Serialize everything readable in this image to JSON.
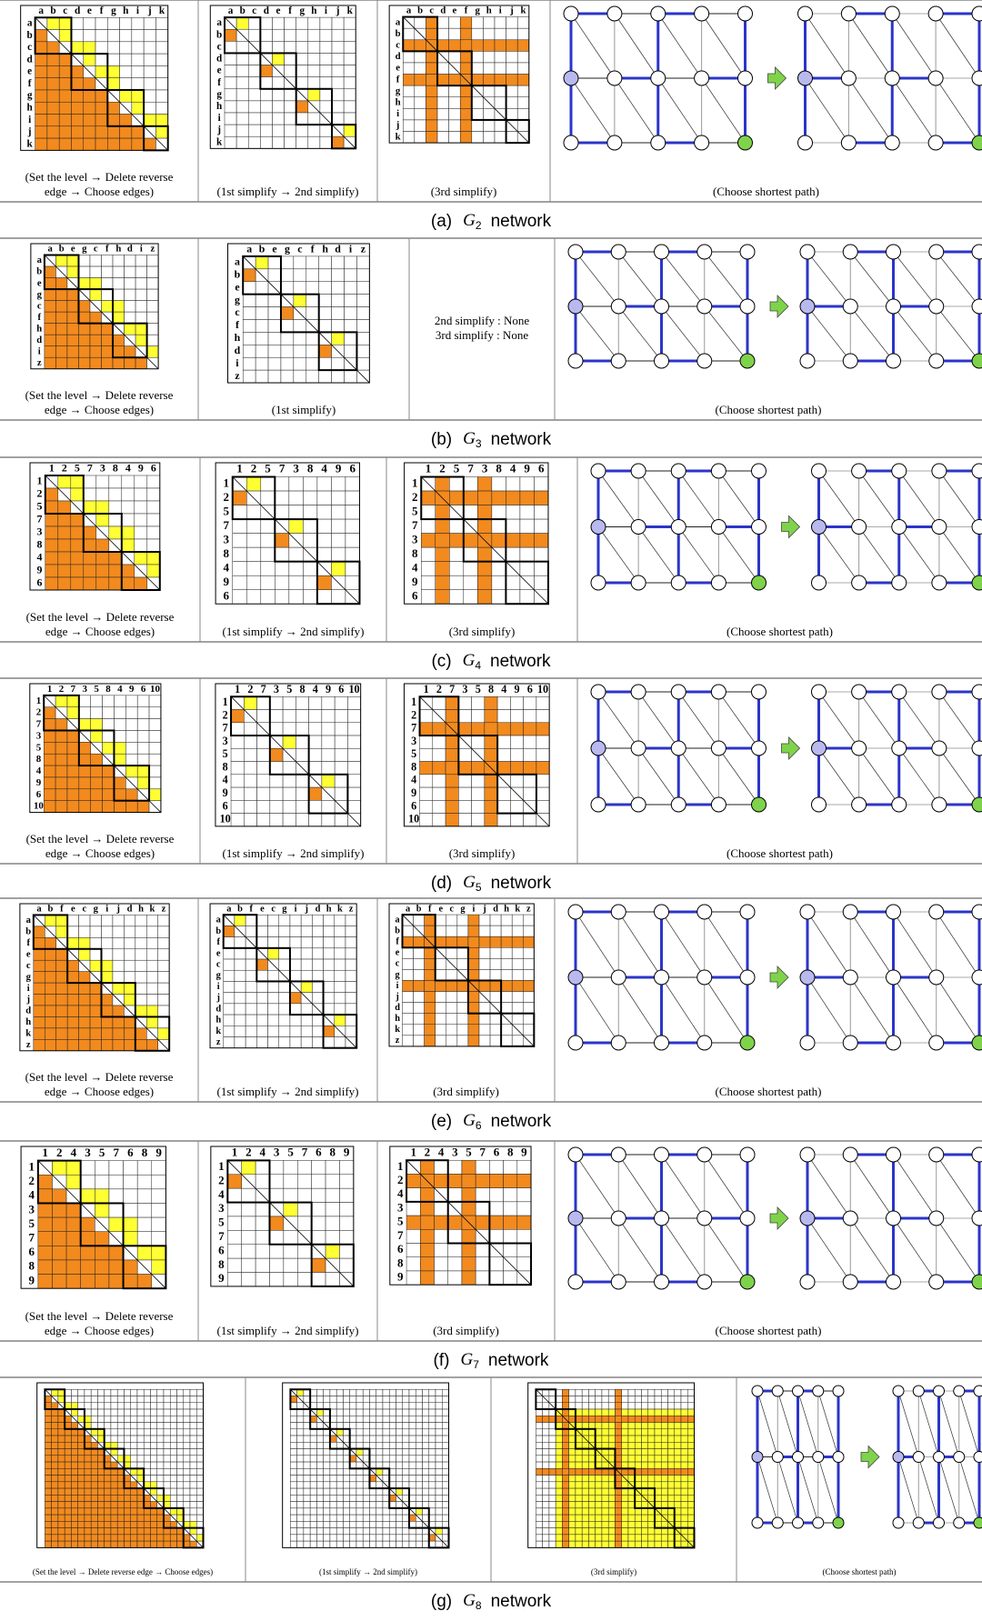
{
  "rows": [
    {
      "label": "(a)",
      "graph": "G",
      "sub": "2",
      "word": "network",
      "nodes": [
        "a",
        "b",
        "c",
        "d",
        "e",
        "f",
        "g",
        "h",
        "i",
        "j",
        "k"
      ],
      "panels": [
        {
          "caption": [
            "(Set the level → Delete reverse",
            "edge → Choose edges)"
          ]
        },
        {
          "caption": [
            "(1st simplify → 2nd simplify)"
          ]
        },
        {
          "caption": [
            "(3rd simplify)"
          ]
        },
        {
          "caption": [
            "(Choose shortest path)"
          ]
        }
      ]
    },
    {
      "label": "(b)",
      "graph": "G",
      "sub": "3",
      "word": "network",
      "nodes": [
        "a",
        "b",
        "e",
        "g",
        "c",
        "f",
        "h",
        "d",
        "i",
        "z"
      ],
      "panels": [
        {
          "caption": [
            "(Set the level → Delete reverse",
            "edge → Choose edges)"
          ]
        },
        {
          "caption": [
            "(1st simplify)"
          ]
        },
        {
          "note": [
            "2nd simplify : None",
            "3rd simplify : None"
          ]
        },
        {
          "caption": [
            "(Choose shortest path)"
          ]
        }
      ]
    },
    {
      "label": "(c)",
      "graph": "G",
      "sub": "4",
      "word": "network",
      "nodes": [
        "1",
        "2",
        "5",
        "7",
        "3",
        "8",
        "4",
        "9",
        "6"
      ],
      "panels": [
        {
          "caption": [
            "(Set the level → Delete reverse",
            "edge → Choose edges)"
          ]
        },
        {
          "caption": [
            "(1st simplify → 2nd simplify)"
          ]
        },
        {
          "caption": [
            "(3rd simplify)"
          ]
        },
        {
          "caption": [
            "(Choose shortest path)"
          ]
        }
      ]
    },
    {
      "label": "(d)",
      "graph": "G",
      "sub": "5",
      "word": "network",
      "nodes": [
        "1",
        "2",
        "7",
        "3",
        "5",
        "8",
        "4",
        "9",
        "6",
        "10"
      ],
      "panels": [
        {
          "caption": [
            "(Set the level → Delete reverse",
            "edge → Choose edges)"
          ]
        },
        {
          "caption": [
            "(1st simplify → 2nd simplify)"
          ]
        },
        {
          "caption": [
            "(3rd simplify)"
          ]
        },
        {
          "caption": [
            "(Choose shortest path)"
          ]
        }
      ]
    },
    {
      "label": "(e)",
      "graph": "G",
      "sub": "6",
      "word": "network",
      "nodes": [
        "a",
        "b",
        "f",
        "e",
        "c",
        "g",
        "i",
        "j",
        "d",
        "h",
        "k",
        "z"
      ],
      "panels": [
        {
          "caption": [
            "(Set the level → Delete reverse",
            "edge → Choose edges)"
          ]
        },
        {
          "caption": [
            "(1st simplify → 2nd simplify)"
          ]
        },
        {
          "caption": [
            "(3rd simplify)"
          ]
        },
        {
          "caption": [
            "(Choose shortest path)"
          ]
        }
      ]
    },
    {
      "label": "(f)",
      "graph": "G",
      "sub": "7",
      "word": "network",
      "nodes": [
        "1",
        "2",
        "4",
        "3",
        "5",
        "7",
        "6",
        "8",
        "9"
      ],
      "panels": [
        {
          "caption": [
            "(Set the level → Delete reverse",
            "edge → Choose edges)"
          ]
        },
        {
          "caption": [
            "(1st simplify → 2nd simplify)"
          ]
        },
        {
          "caption": [
            "(3rd simplify)"
          ]
        },
        {
          "caption": [
            "(Choose shortest path)"
          ]
        }
      ]
    },
    {
      "label": "(g)",
      "graph": "G",
      "sub": "8",
      "word": "network",
      "nodes": [],
      "panels": [
        {
          "caption": [
            "(Set the level → Delete reverse edge → Choose edges)"
          ]
        },
        {
          "caption": [
            "(1st simplify → 2nd simplify)"
          ]
        },
        {
          "caption": [
            "(3rd simplify)"
          ]
        },
        {
          "caption": [
            "(Choose shortest path)"
          ]
        }
      ]
    }
  ]
}
